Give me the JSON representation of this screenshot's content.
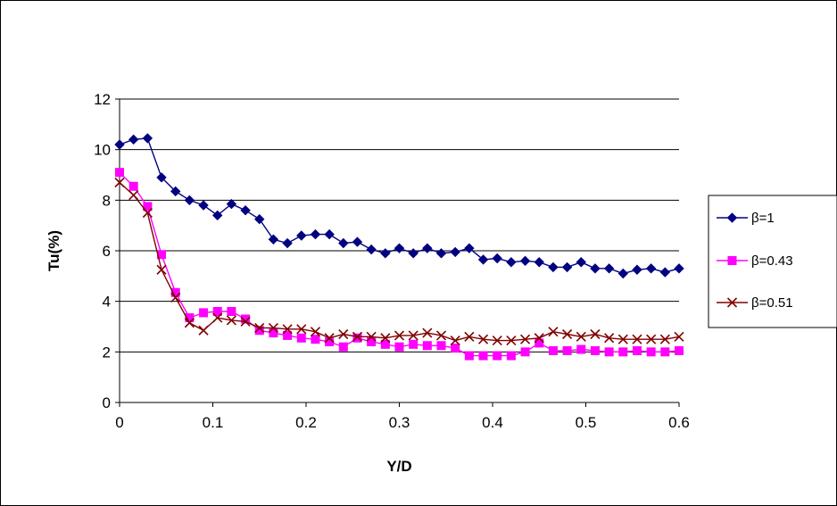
{
  "chart_data": {
    "type": "line",
    "title": "",
    "xlabel": "Y/D",
    "ylabel": "Tu(%)",
    "xlim": [
      0,
      0.6
    ],
    "ylim": [
      0,
      12
    ],
    "xticks": [
      "0",
      "0.1",
      "0.2",
      "0.3",
      "0.4",
      "0.5",
      "0.6"
    ],
    "yticks": [
      "0",
      "2",
      "4",
      "6",
      "8",
      "10",
      "12"
    ],
    "grid": "horizontal",
    "legend_position": "right",
    "series": [
      {
        "name": "β=1",
        "color": "#000080",
        "marker": "diamond",
        "x": [
          0,
          0.015,
          0.03,
          0.045,
          0.06,
          0.075,
          0.09,
          0.105,
          0.12,
          0.135,
          0.15,
          0.165,
          0.18,
          0.195,
          0.21,
          0.225,
          0.24,
          0.255,
          0.27,
          0.285,
          0.3,
          0.315,
          0.33,
          0.345,
          0.36,
          0.375,
          0.39,
          0.405,
          0.42,
          0.435,
          0.45,
          0.465,
          0.48,
          0.495,
          0.51,
          0.525,
          0.54,
          0.555,
          0.57,
          0.585,
          0.6
        ],
        "y": [
          10.2,
          10.4,
          10.45,
          8.9,
          8.35,
          8.0,
          7.8,
          7.4,
          7.85,
          7.6,
          7.25,
          6.45,
          6.3,
          6.6,
          6.65,
          6.65,
          6.3,
          6.35,
          6.05,
          5.9,
          6.1,
          5.9,
          6.1,
          5.9,
          5.95,
          6.1,
          5.65,
          5.7,
          5.55,
          5.6,
          5.55,
          5.35,
          5.35,
          5.55,
          5.3,
          5.3,
          5.1,
          5.25,
          5.3,
          5.15,
          5.3
        ]
      },
      {
        "name": "β=0.43",
        "color": "#FF00FF",
        "marker": "square",
        "x": [
          0,
          0.015,
          0.03,
          0.045,
          0.06,
          0.075,
          0.09,
          0.105,
          0.12,
          0.135,
          0.15,
          0.165,
          0.18,
          0.195,
          0.21,
          0.225,
          0.24,
          0.255,
          0.27,
          0.285,
          0.3,
          0.315,
          0.33,
          0.345,
          0.36,
          0.375,
          0.39,
          0.405,
          0.42,
          0.435,
          0.45,
          0.465,
          0.48,
          0.495,
          0.51,
          0.525,
          0.54,
          0.555,
          0.57,
          0.585,
          0.6
        ],
        "y": [
          9.1,
          8.55,
          7.75,
          5.85,
          4.35,
          3.35,
          3.55,
          3.6,
          3.6,
          3.3,
          2.85,
          2.75,
          2.65,
          2.55,
          2.5,
          2.4,
          2.2,
          2.55,
          2.4,
          2.3,
          2.2,
          2.3,
          2.25,
          2.25,
          2.15,
          1.85,
          1.85,
          1.85,
          1.85,
          2.0,
          2.35,
          2.05,
          2.05,
          2.1,
          2.05,
          2.0,
          2.0,
          2.05,
          2.0,
          2.0,
          2.05
        ]
      },
      {
        "name": "β=0.51",
        "color": "#800000",
        "marker": "x",
        "x": [
          0,
          0.015,
          0.03,
          0.045,
          0.06,
          0.075,
          0.09,
          0.105,
          0.12,
          0.135,
          0.15,
          0.165,
          0.18,
          0.195,
          0.21,
          0.225,
          0.24,
          0.255,
          0.27,
          0.285,
          0.3,
          0.315,
          0.33,
          0.345,
          0.36,
          0.375,
          0.39,
          0.405,
          0.42,
          0.435,
          0.45,
          0.465,
          0.48,
          0.495,
          0.51,
          0.525,
          0.54,
          0.555,
          0.57,
          0.585,
          0.6
        ],
        "y": [
          8.7,
          8.2,
          7.5,
          5.25,
          4.15,
          3.15,
          2.85,
          3.35,
          3.25,
          3.2,
          2.95,
          2.95,
          2.9,
          2.9,
          2.8,
          2.55,
          2.7,
          2.6,
          2.6,
          2.55,
          2.65,
          2.65,
          2.75,
          2.65,
          2.45,
          2.6,
          2.5,
          2.45,
          2.45,
          2.5,
          2.55,
          2.8,
          2.7,
          2.6,
          2.7,
          2.55,
          2.5,
          2.5,
          2.5,
          2.5,
          2.6
        ]
      }
    ]
  }
}
